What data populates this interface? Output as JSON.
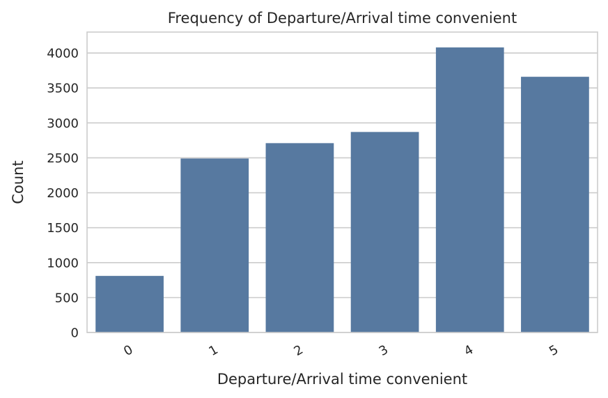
{
  "chart_data": {
    "type": "bar",
    "title": "Frequency of Departure/Arrival time convenient",
    "xlabel": "Departure/Arrival time convenient",
    "ylabel": "Count",
    "categories": [
      "0",
      "1",
      "2",
      "3",
      "4",
      "5"
    ],
    "values": [
      810,
      2490,
      2710,
      2870,
      4080,
      3660
    ],
    "ylim": [
      0,
      4300
    ],
    "yticks": [
      "0",
      "500",
      "1000",
      "1500",
      "2000",
      "2500",
      "3000",
      "3500",
      "4000"
    ],
    "grid": "horizontal",
    "bar_color": "#5779a0",
    "x_tick_rotation": "rotated"
  }
}
